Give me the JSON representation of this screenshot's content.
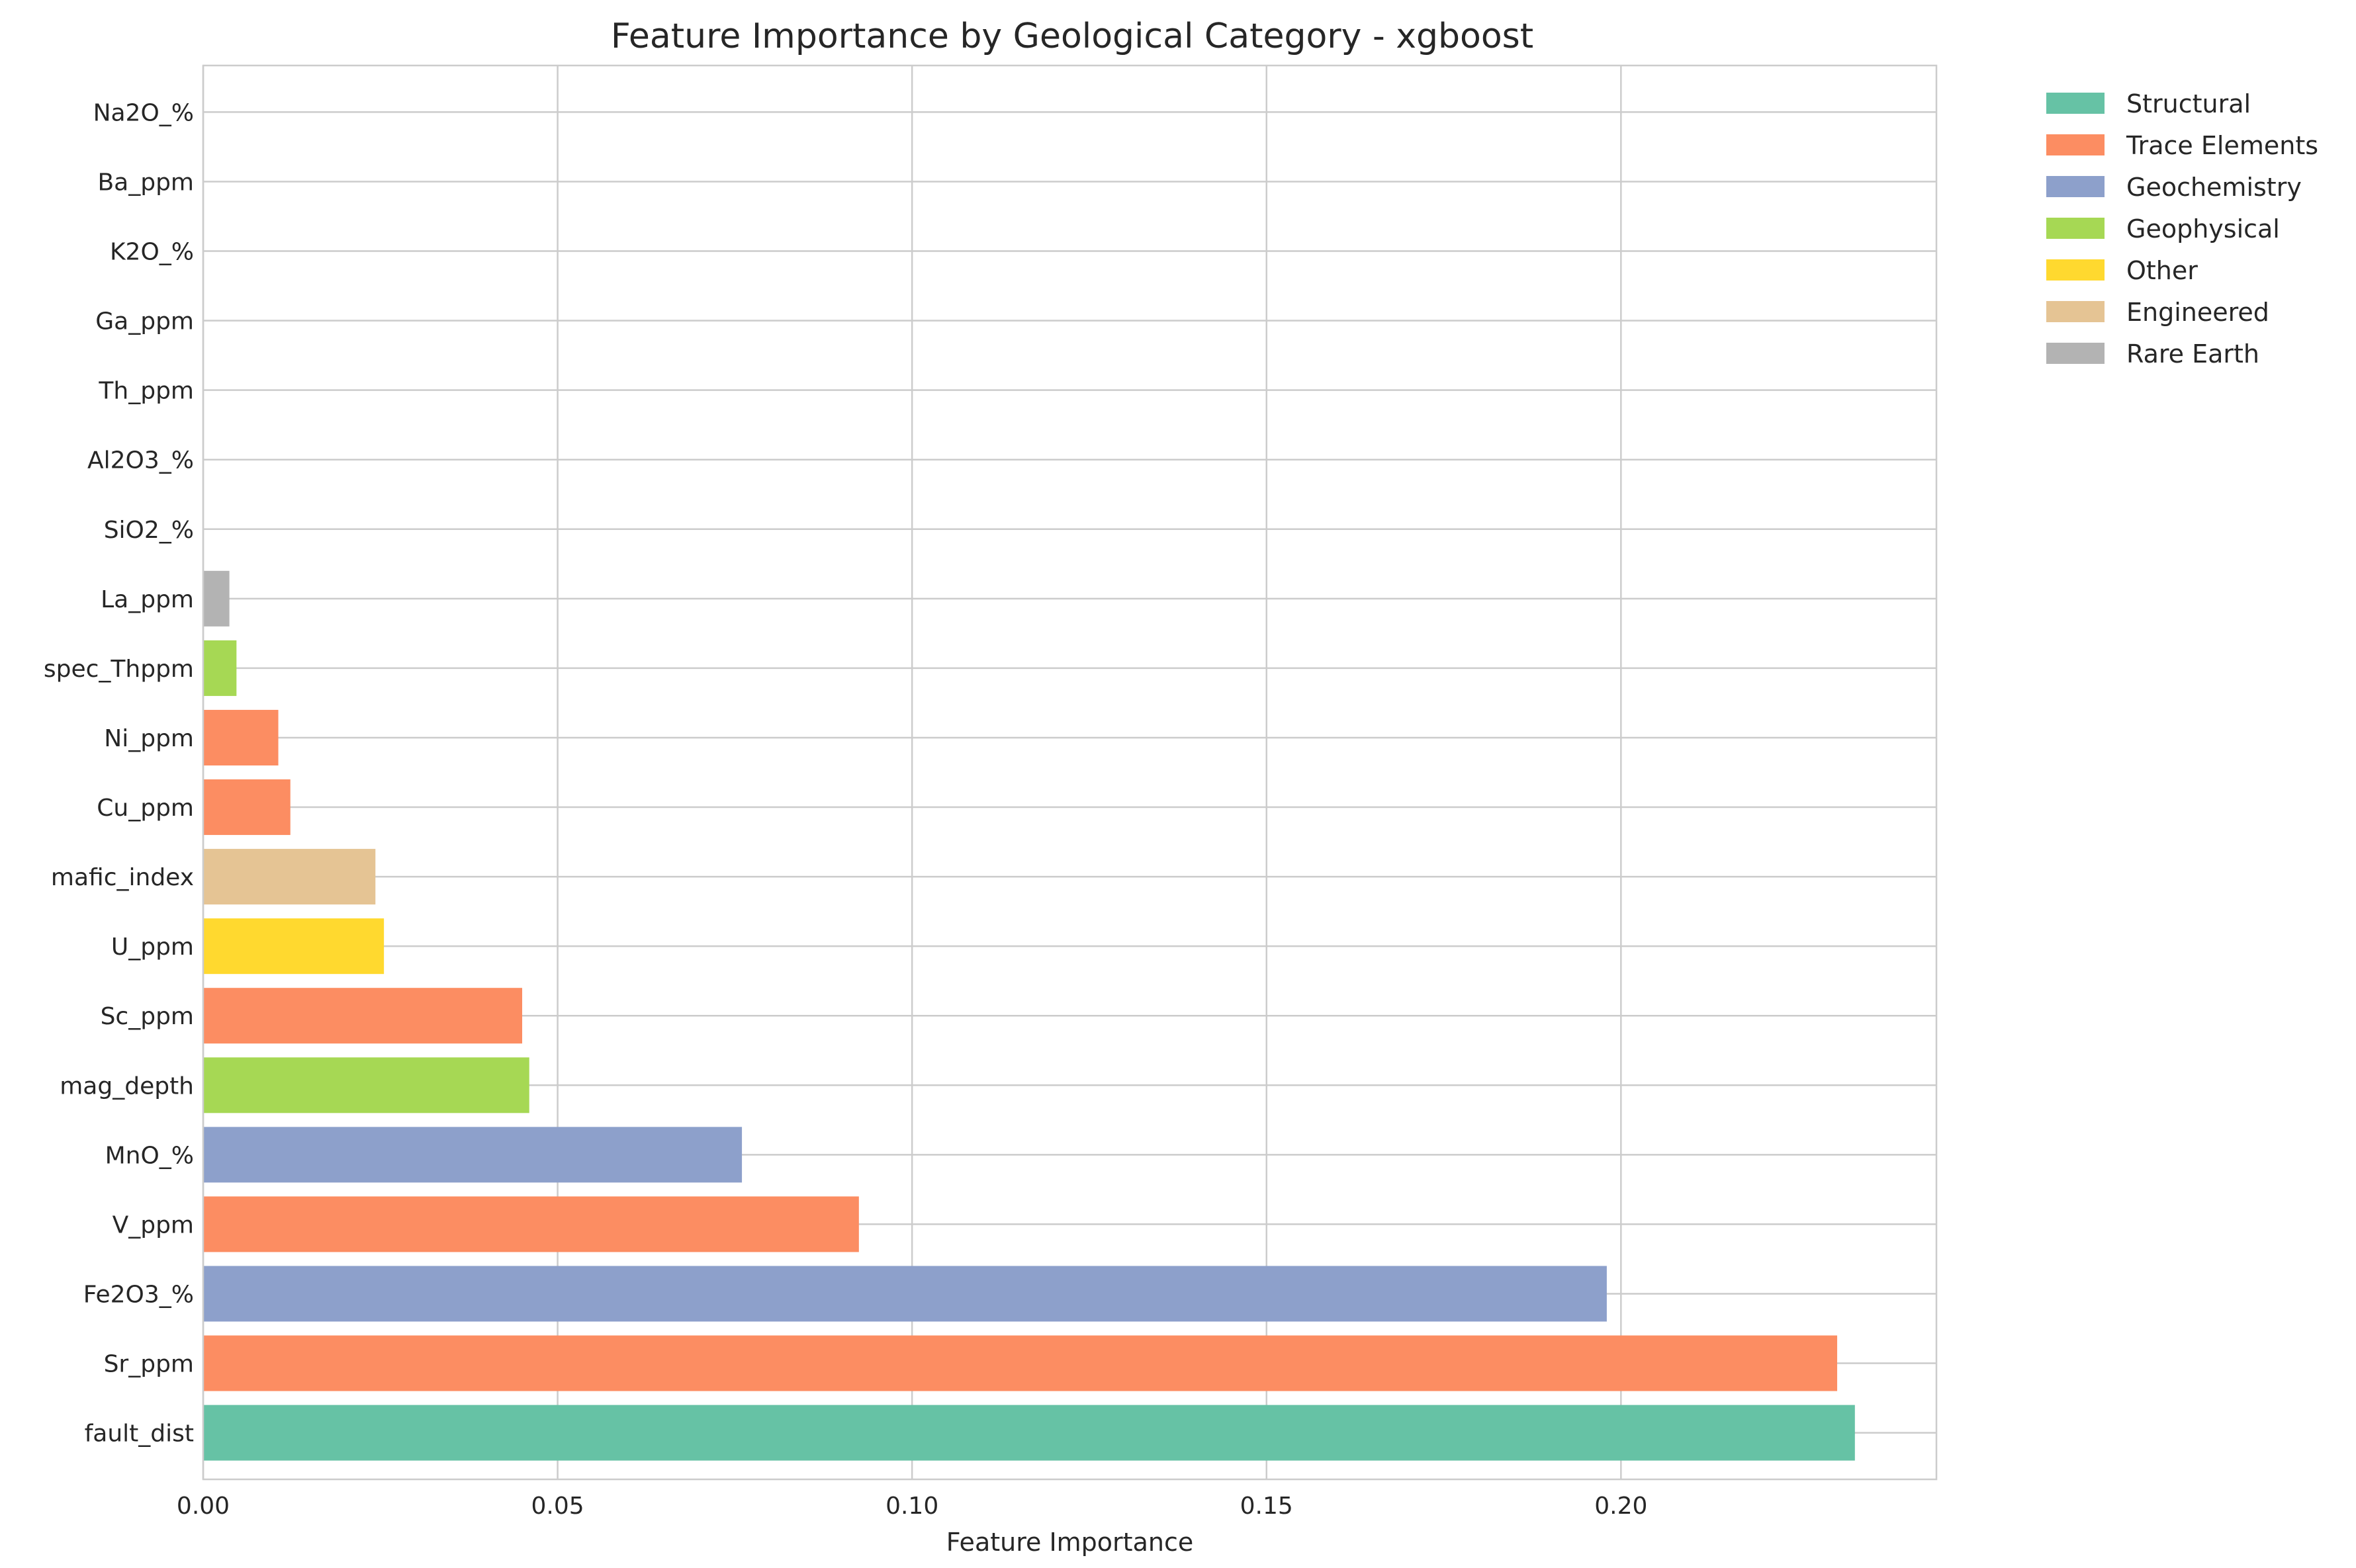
{
  "chart_data": {
    "type": "bar",
    "orientation": "horizontal",
    "title": "Feature Importance by Geological Category - xgboost",
    "xlabel": "Feature Importance",
    "ylabel": "",
    "xlim": [
      0,
      0.2445
    ],
    "xticks": [
      0.0,
      0.05,
      0.1,
      0.15,
      0.2
    ],
    "xtick_labels": [
      "0.00",
      "0.05",
      "0.10",
      "0.15",
      "0.20"
    ],
    "grid": true,
    "legend_position": "outside-top-right",
    "categories": [
      "fault_dist",
      "Sr_ppm",
      "Fe2O3_%",
      "V_ppm",
      "MnO_%",
      "mag_depth",
      "Sc_ppm",
      "U_ppm",
      "mafic_index",
      "Cu_ppm",
      "Ni_ppm",
      "spec_Thppm",
      "La_ppm",
      "SiO2_%",
      "Al2O3_%",
      "Th_ppm",
      "Ga_ppm",
      "K2O_%",
      "Ba_ppm",
      "Na2O_%"
    ],
    "values": [
      0.233,
      0.2305,
      0.198,
      0.0925,
      0.076,
      0.046,
      0.045,
      0.0255,
      0.0243,
      0.0123,
      0.0106,
      0.0047,
      0.0037,
      0,
      0,
      0,
      0,
      0,
      0,
      0
    ],
    "bar_groups": [
      "Structural",
      "Trace Elements",
      "Geochemistry",
      "Trace Elements",
      "Geochemistry",
      "Geophysical",
      "Trace Elements",
      "Other",
      "Engineered",
      "Trace Elements",
      "Trace Elements",
      "Geophysical",
      "Rare Earth",
      "Geochemistry",
      "Geochemistry",
      "Trace Elements",
      "Trace Elements",
      "Geochemistry",
      "Trace Elements",
      "Geochemistry"
    ],
    "legend": [
      {
        "name": "Structural",
        "color": "#66c2a5"
      },
      {
        "name": "Trace Elements",
        "color": "#fc8d62"
      },
      {
        "name": "Geochemistry",
        "color": "#8da0cb"
      },
      {
        "name": "Geophysical",
        "color": "#a6d854"
      },
      {
        "name": "Other",
        "color": "#ffd92f"
      },
      {
        "name": "Engineered",
        "color": "#e5c494"
      },
      {
        "name": "Rare Earth",
        "color": "#b3b3b3"
      }
    ]
  }
}
